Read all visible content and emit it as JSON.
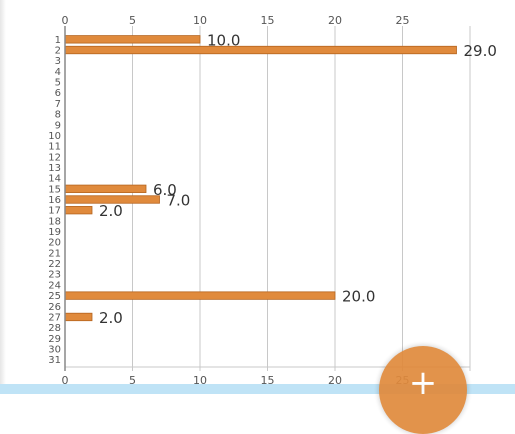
{
  "chart_data": {
    "type": "bar",
    "orientation": "horizontal",
    "title": "",
    "xlabel": "",
    "ylabel": "",
    "xlim": [
      0,
      30
    ],
    "x_ticks": [
      "0",
      "5",
      "10",
      "15",
      "20",
      "25"
    ],
    "grid": true,
    "legend": "none",
    "categories": [
      "1",
      "2",
      "3",
      "4",
      "5",
      "6",
      "7",
      "8",
      "9",
      "10",
      "11",
      "12",
      "13",
      "14",
      "15",
      "16",
      "17",
      "18",
      "19",
      "20",
      "21",
      "22",
      "23",
      "24",
      "25",
      "26",
      "27",
      "28",
      "29",
      "30",
      "31"
    ],
    "values": [
      10,
      29,
      0,
      0,
      0,
      0,
      0,
      0,
      0,
      0,
      0,
      0,
      0,
      0,
      6,
      7,
      2,
      0,
      0,
      0,
      0,
      0,
      0,
      0,
      20,
      0,
      2,
      0,
      0,
      0,
      0
    ],
    "data_labels": [
      "10.0",
      "29.0",
      "",
      "",
      "",
      "",
      "",
      "",
      "",
      "",
      "",
      "",
      "",
      "",
      "6.0",
      "7.0",
      "2.0",
      "",
      "",
      "",
      "",
      "",
      "",
      "",
      "20.0",
      "",
      "2.0",
      "",
      "",
      "",
      ""
    ],
    "bar_color": "#e08a3c",
    "bar_border": "#b5641e",
    "grid_color": "#c8c8c8",
    "axis_color": "#888888"
  },
  "fab": {
    "icon": "plus-icon",
    "label": "+",
    "color": "#e08a3c"
  }
}
